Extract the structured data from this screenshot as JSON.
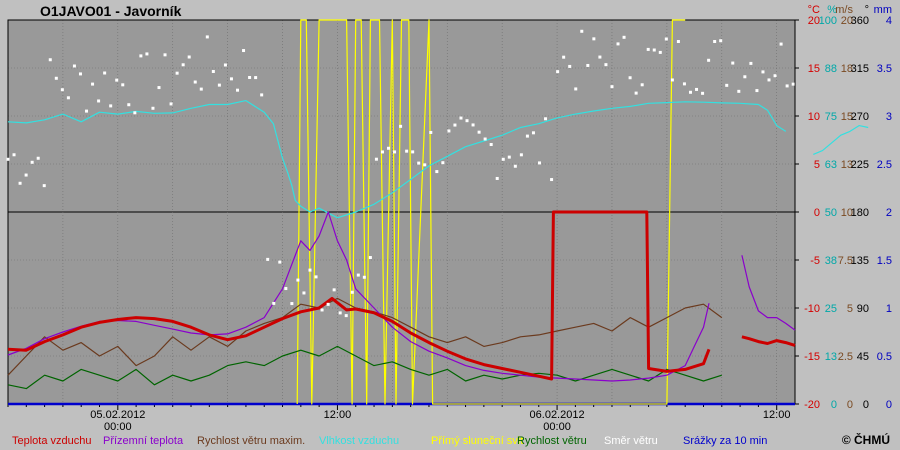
{
  "chart_data": {
    "type": "line",
    "title": "O1JAVO01 - Javorník",
    "copyright": "© ČHMÚ",
    "x_ticks": [
      {
        "date": "05.02.2012",
        "time": "00:00"
      },
      {
        "date": "",
        "time": "12:00"
      },
      {
        "date": "06.02.2012",
        "time": "00:00"
      },
      {
        "date": "",
        "time": "12:00"
      }
    ],
    "axes": [
      {
        "unit": "°C",
        "color": "#d40000",
        "ticks": [
          "20",
          "15",
          "10",
          "5",
          "0",
          "-5",
          "-10",
          "-15",
          "-20"
        ]
      },
      {
        "unit": "%",
        "color": "#00a8a8",
        "ticks": [
          "100",
          "88",
          "75",
          "63",
          "50",
          "38",
          "25",
          "13",
          "0"
        ]
      },
      {
        "unit": "m/s",
        "color": "#7a4a22",
        "ticks": [
          "20",
          "18",
          "15",
          "13",
          "10",
          "7.5",
          "5",
          "2.5",
          "0"
        ]
      },
      {
        "unit": "°",
        "color": "#000000",
        "ticks": [
          "360",
          "315",
          "270",
          "225",
          "180",
          "135",
          "90",
          "45",
          "0"
        ]
      },
      {
        "unit": "mm",
        "color": "#0000c0",
        "ticks": [
          "4",
          "3.5",
          "3",
          "2.5",
          "2",
          "1.5",
          "1",
          "0.5",
          "0"
        ]
      }
    ],
    "legend": [
      {
        "name": "Teplota vzduchu",
        "color": "#cc0000"
      },
      {
        "name": "Přízemní teplota",
        "color": "#8a00cc"
      },
      {
        "name": "Rychlost větru maxim.",
        "color": "#6b3a1e"
      },
      {
        "name": "Vlhkost vzduchu",
        "color": "#33e0e0"
      },
      {
        "name": "Přímý sluneční svit",
        "color": "#ffff00"
      },
      {
        "name": "Rychlost větru",
        "color": "#006400"
      },
      {
        "name": "Směr větru",
        "color": "#ffffff"
      },
      {
        "name": "Srážky za 10 min",
        "color": "#0000cc"
      }
    ],
    "x_range_hours": [
      -6,
      37
    ],
    "series": [
      {
        "name": "Teplota vzduchu",
        "unit": "°C",
        "values": [
          [
            -6.0,
            -14.3
          ],
          [
            -5.0,
            -14.4
          ],
          [
            -4.0,
            -13.5
          ],
          [
            -3.0,
            -12.8
          ],
          [
            -2.0,
            -12.0
          ],
          [
            -1.0,
            -11.5
          ],
          [
            0.0,
            -11.2
          ],
          [
            1.0,
            -11.0
          ],
          [
            2.0,
            -11.1
          ],
          [
            3.0,
            -11.4
          ],
          [
            4.0,
            -12.0
          ],
          [
            5.0,
            -12.8
          ],
          [
            6.0,
            -13.3
          ],
          [
            7.0,
            -12.9
          ],
          [
            8.0,
            -12.0
          ],
          [
            9.0,
            -11.1
          ],
          [
            10.0,
            -10.4
          ],
          [
            11.0,
            -10.0
          ],
          [
            11.7,
            -9.0
          ],
          [
            12.5,
            -10.2
          ],
          [
            13.0,
            -10.1
          ],
          [
            14.0,
            -10.5
          ],
          [
            15.0,
            -11.4
          ],
          [
            16.0,
            -12.6
          ],
          [
            17.0,
            -13.6
          ],
          [
            18.0,
            -14.5
          ],
          [
            19.0,
            -15.3
          ],
          [
            20.0,
            -15.9
          ],
          [
            21.0,
            -16.3
          ],
          [
            22.0,
            -16.7
          ],
          [
            23.0,
            -17.1
          ],
          [
            23.7,
            -17.4
          ],
          [
            23.8,
            0.0
          ],
          [
            28.9,
            0.0
          ],
          [
            29.0,
            -16.3
          ],
          [
            30.0,
            -16.6
          ],
          [
            31.0,
            -16.4
          ],
          [
            32.0,
            -15.8
          ],
          [
            32.3,
            -14.3
          ],
          null,
          [
            34.1,
            -13.0
          ],
          [
            34.5,
            -13.2
          ],
          [
            35.0,
            -13.5
          ],
          [
            35.5,
            -13.7
          ],
          [
            36.0,
            -13.4
          ],
          [
            36.5,
            -13.6
          ],
          [
            37.0,
            -13.9
          ]
        ]
      },
      {
        "name": "Přízemní teplota",
        "unit": "°C",
        "values": [
          [
            -6.0,
            -14.9
          ],
          [
            -5.0,
            -14.2
          ],
          [
            -4.0,
            -13.2
          ],
          [
            -3.0,
            -12.5
          ],
          [
            -2.0,
            -11.9
          ],
          [
            -1.0,
            -11.4
          ],
          [
            0.0,
            -11.3
          ],
          [
            1.0,
            -11.4
          ],
          [
            2.0,
            -11.8
          ],
          [
            3.0,
            -12.2
          ],
          [
            4.0,
            -12.6
          ],
          [
            5.0,
            -12.8
          ],
          [
            6.0,
            -12.7
          ],
          [
            7.0,
            -12.0
          ],
          [
            8.0,
            -11.0
          ],
          [
            9.0,
            -8.0
          ],
          [
            10.0,
            -3.0
          ],
          [
            10.5,
            -4.0
          ],
          [
            11.0,
            -2.5
          ],
          [
            11.5,
            0.0
          ],
          [
            12.0,
            -3.0
          ],
          [
            12.5,
            -5.0
          ],
          [
            13.0,
            -8.0
          ],
          [
            14.0,
            -10.0
          ],
          [
            15.0,
            -12.0
          ],
          [
            16.0,
            -13.5
          ],
          [
            17.0,
            -14.5
          ],
          [
            18.0,
            -15.2
          ],
          [
            19.0,
            -16.0
          ],
          [
            20.0,
            -16.5
          ],
          [
            21.0,
            -16.8
          ],
          [
            22.0,
            -17.0
          ],
          [
            23.0,
            -17.2
          ],
          [
            24.0,
            -17.3
          ],
          [
            25.0,
            -17.4
          ],
          [
            26.0,
            -17.5
          ],
          [
            27.0,
            -17.6
          ],
          [
            28.0,
            -17.5
          ],
          [
            29.0,
            -17.3
          ],
          [
            30.0,
            -17.0
          ],
          [
            31.0,
            -16.0
          ],
          [
            31.5,
            -14.0
          ],
          [
            32.0,
            -12.0
          ],
          [
            32.3,
            -9.5
          ],
          null,
          [
            34.1,
            -4.5
          ],
          [
            34.5,
            -7.8
          ],
          [
            35.0,
            -10.3
          ],
          [
            35.5,
            -11.0
          ],
          [
            36.0,
            -11.0
          ],
          [
            36.5,
            -11.6
          ],
          [
            37.0,
            -12.3
          ]
        ]
      },
      {
        "name": "Vlhkost vzduchu",
        "unit": "%",
        "values": [
          [
            -6.0,
            73.5
          ],
          [
            -5.0,
            73.2
          ],
          [
            -4.0,
            74.0
          ],
          [
            -3.0,
            75.5
          ],
          [
            -2.0,
            73.5
          ],
          [
            -1.0,
            76.0
          ],
          [
            0.0,
            75.5
          ],
          [
            1.0,
            76.2
          ],
          [
            2.0,
            75.7
          ],
          [
            3.0,
            75.8
          ],
          [
            4.0,
            77.0
          ],
          [
            5.0,
            78.0
          ],
          [
            6.0,
            78.0
          ],
          [
            7.0,
            79.0
          ],
          [
            8.0,
            76.0
          ],
          [
            8.5,
            73.0
          ],
          [
            9.0,
            64.0
          ],
          [
            9.3,
            60.0
          ],
          [
            9.5,
            57.0
          ],
          [
            9.7,
            53.0
          ],
          [
            10.0,
            51.5
          ],
          [
            10.5,
            50.0
          ],
          [
            11.0,
            51.0
          ],
          [
            12.0,
            48.5
          ],
          [
            13.0,
            50.0
          ],
          [
            14.0,
            52.0
          ],
          [
            15.0,
            55.0
          ],
          [
            16.0,
            58.5
          ],
          [
            17.0,
            62.0
          ],
          [
            18.0,
            64.5
          ],
          [
            19.0,
            67.0
          ],
          [
            20.0,
            68.5
          ],
          [
            21.0,
            70.0
          ],
          [
            22.0,
            72.0
          ],
          [
            23.0,
            73.0
          ],
          [
            24.0,
            74.5
          ],
          [
            25.0,
            75.5
          ],
          [
            26.0,
            76.3
          ],
          [
            27.0,
            77.0
          ],
          [
            28.0,
            77.5
          ],
          [
            29.0,
            78.3
          ],
          [
            30.0,
            78.5
          ],
          [
            31.0,
            78.7
          ],
          [
            32.0,
            78.6
          ],
          [
            33.0,
            78.4
          ],
          [
            34.0,
            78.3
          ],
          [
            35.0,
            78.0
          ],
          [
            35.5,
            76.5
          ],
          [
            36.0,
            72.5
          ],
          [
            36.5,
            71.0
          ],
          null,
          [
            38.0,
            65.0
          ],
          [
            38.5,
            66.0
          ],
          [
            39.0,
            68.0
          ],
          [
            39.5,
            70.0
          ],
          [
            40.0,
            71.0
          ],
          [
            40.5,
            72.5
          ],
          [
            41.0,
            72.0
          ]
        ]
      },
      {
        "name": "Rychlost větru maxim.",
        "unit": "m/s",
        "values": [
          [
            -6.0,
            1.5
          ],
          [
            -5.0,
            2.5
          ],
          [
            -4.0,
            3.5
          ],
          [
            -3.0,
            2.8
          ],
          [
            -2.0,
            3.2
          ],
          [
            -1.0,
            2.5
          ],
          [
            0.0,
            3.0
          ],
          [
            1.0,
            2.0
          ],
          [
            2.0,
            2.5
          ],
          [
            3.0,
            3.5
          ],
          [
            4.0,
            2.8
          ],
          [
            5.0,
            3.5
          ],
          [
            6.0,
            3.0
          ],
          [
            7.0,
            3.8
          ],
          [
            8.0,
            4.2
          ],
          [
            9.0,
            4.5
          ],
          [
            10.0,
            5.2
          ],
          [
            11.0,
            5.0
          ],
          [
            12.0,
            5.5
          ],
          [
            13.0,
            5.0
          ],
          [
            14.0,
            4.8
          ],
          [
            15.0,
            4.5
          ],
          [
            16.0,
            4.0
          ],
          [
            17.0,
            3.5
          ],
          [
            18.0,
            3.2
          ],
          [
            19.0,
            3.5
          ],
          [
            20.0,
            3.0
          ],
          [
            21.0,
            3.2
          ],
          [
            22.0,
            3.5
          ],
          [
            23.0,
            3.6
          ],
          [
            24.0,
            3.8
          ],
          [
            25.0,
            4.0
          ],
          [
            26.0,
            4.2
          ],
          [
            27.0,
            3.8
          ],
          [
            28.0,
            4.5
          ],
          [
            29.0,
            4.0
          ],
          [
            30.0,
            4.5
          ],
          [
            31.0,
            5.0
          ],
          [
            32.0,
            5.2
          ],
          [
            33.0,
            4.5
          ]
        ]
      },
      {
        "name": "Rychlost větru",
        "unit": "m/s",
        "values": [
          [
            -6.0,
            1.0
          ],
          [
            -5.0,
            0.8
          ],
          [
            -4.0,
            1.5
          ],
          [
            -3.0,
            1.2
          ],
          [
            -2.0,
            1.8
          ],
          [
            -1.0,
            1.5
          ],
          [
            0.0,
            1.2
          ],
          [
            1.0,
            1.8
          ],
          [
            2.0,
            1.0
          ],
          [
            3.0,
            1.5
          ],
          [
            4.0,
            1.2
          ],
          [
            5.0,
            1.5
          ],
          [
            6.0,
            2.0
          ],
          [
            7.0,
            2.2
          ],
          [
            8.0,
            2.0
          ],
          [
            9.0,
            2.5
          ],
          [
            10.0,
            2.8
          ],
          [
            11.0,
            2.5
          ],
          [
            12.0,
            3.0
          ],
          [
            13.0,
            2.5
          ],
          [
            14.0,
            2.0
          ],
          [
            15.0,
            2.2
          ],
          [
            16.0,
            1.8
          ],
          [
            17.0,
            1.5
          ],
          [
            18.0,
            1.8
          ],
          [
            19.0,
            1.2
          ],
          [
            20.0,
            1.5
          ],
          [
            21.0,
            1.3
          ],
          [
            22.0,
            1.5
          ],
          [
            23.0,
            1.6
          ],
          [
            24.0,
            1.5
          ],
          [
            25.0,
            1.2
          ],
          [
            26.0,
            1.5
          ],
          [
            27.0,
            1.8
          ],
          [
            28.0,
            1.5
          ],
          [
            29.0,
            1.2
          ],
          [
            30.0,
            1.8
          ],
          [
            31.0,
            1.5
          ],
          [
            32.0,
            1.2
          ],
          [
            33.0,
            1.5
          ]
        ]
      },
      {
        "name": "Přímý sluneční svit",
        "unit": "%",
        "values": [
          [
            9.8,
            0
          ],
          [
            10.0,
            100
          ],
          [
            10.3,
            100
          ],
          [
            10.6,
            0
          ],
          [
            11.0,
            100
          ],
          [
            12.5,
            100
          ],
          [
            12.8,
            0
          ],
          [
            13.0,
            100
          ],
          [
            13.3,
            100
          ],
          [
            13.6,
            0
          ],
          [
            13.8,
            100
          ],
          [
            14.3,
            100
          ],
          [
            14.6,
            0
          ],
          [
            15.0,
            100
          ],
          [
            15.2,
            0
          ],
          [
            15.5,
            100
          ],
          [
            15.9,
            100
          ],
          [
            16.1,
            0
          ],
          [
            17.0,
            100
          ],
          [
            17.2,
            0
          ],
          [
            30.0,
            0
          ],
          [
            30.3,
            100
          ],
          [
            31.0,
            100
          ]
        ]
      },
      {
        "name": "Srážky za 10 min",
        "unit": "mm",
        "values": [
          [
            -6.0,
            0
          ],
          [
            37.0,
            0
          ]
        ]
      }
    ]
  }
}
